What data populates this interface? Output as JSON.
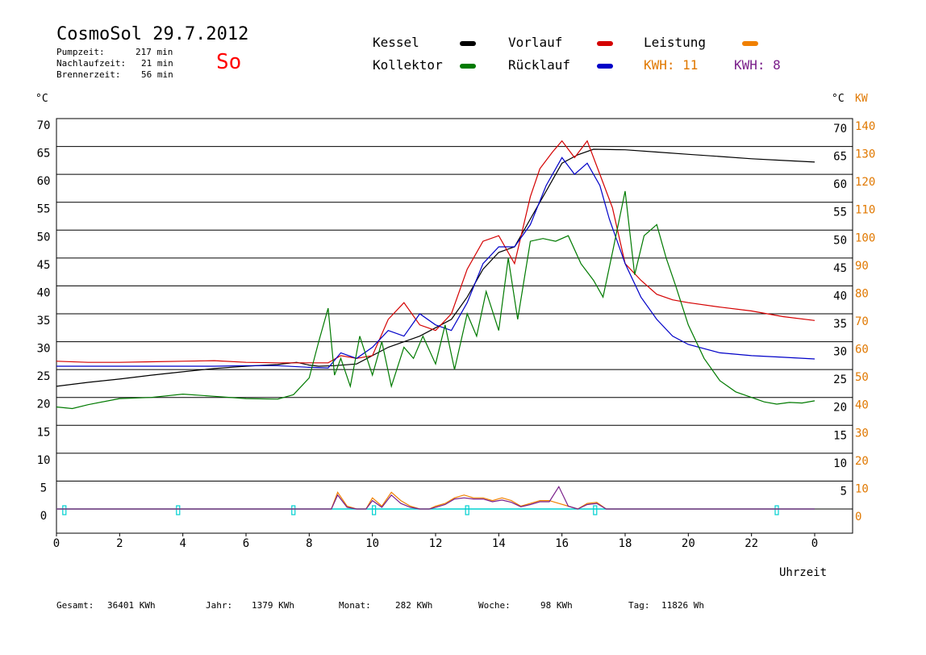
{
  "header": {
    "title": "CosmoSol 29.7.2012",
    "day": "So",
    "pump_label": "Pumpzeit:",
    "pump_value": "217 min",
    "nach_label": "Nachlaufzeit:",
    "nach_value": "21 min",
    "brenner_label": "Brennerzeit:",
    "brenner_value": "56 min"
  },
  "legend": {
    "kessel": "Kessel",
    "vorlauf": "Vorlauf",
    "leistung": "Leistung",
    "kollektor": "Kollektor",
    "ruecklauf": "Rücklauf",
    "kwh_orange": "KWH: 11",
    "kwh_purple": "KWH: 8"
  },
  "axes": {
    "left_unit": "°C",
    "right_unit": "°C",
    "right_unit2": "KW",
    "xlabel": "Uhrzeit"
  },
  "footer": {
    "gesamt_label": "Gesamt:",
    "gesamt_value": "36401 KWh",
    "jahr_label": "Jahr:",
    "jahr_value": "1379 KWh",
    "monat_label": "Monat:",
    "monat_value": "282 KWh",
    "woche_label": "Woche:",
    "woche_value": "98 KWh",
    "tag_label": "Tag:",
    "tag_value": "11826 Wh"
  },
  "colors": {
    "kessel": "#000000",
    "vorlauf": "#d40000",
    "ruecklauf": "#0000c8",
    "kollektor": "#007a00",
    "leistung": "#f08000",
    "kwh_purple": "#7a1f8a",
    "pump": "#00d0d0"
  },
  "chart_data": {
    "type": "line",
    "xlabel": "Uhrzeit",
    "ylabel": "°C",
    "ylabel_right": "KW",
    "xlim": [
      0,
      24
    ],
    "ylim": [
      0,
      70
    ],
    "x_tick_labels": [
      "0",
      "2",
      "4",
      "6",
      "8",
      "10",
      "12",
      "14",
      "16",
      "18",
      "20",
      "22",
      "0"
    ],
    "y_ticks_left": [
      "0",
      "5",
      "10",
      "15",
      "20",
      "25",
      "30",
      "35",
      "40",
      "45",
      "50",
      "55",
      "60",
      "65",
      "70"
    ],
    "y_ticks_right_c": [
      "5",
      "10",
      "15",
      "20",
      "25",
      "30",
      "35",
      "40",
      "45",
      "50",
      "55",
      "60",
      "65",
      "70"
    ],
    "y_ticks_right_kw": [
      "0",
      "10",
      "20",
      "30",
      "40",
      "50",
      "60",
      "70",
      "80",
      "90",
      "100",
      "110",
      "120",
      "130",
      "140"
    ],
    "grid": true,
    "series": [
      {
        "name": "Kessel",
        "x": [
          0,
          1,
          2,
          3,
          4,
          5,
          6,
          7,
          7.6,
          8,
          8.3,
          8.8,
          9.5,
          10.5,
          11.5,
          12,
          12.5,
          13,
          13.5,
          14,
          14.5,
          15,
          15.5,
          16,
          16.5,
          17,
          18,
          19,
          20,
          21,
          22,
          23,
          24
        ],
        "y": [
          22,
          22.7,
          23.3,
          24,
          24.6,
          25.2,
          25.6,
          25.9,
          26.3,
          25.8,
          25.6,
          25.7,
          26,
          29,
          31,
          32.5,
          34,
          38,
          43,
          46,
          47,
          52,
          57,
          62,
          63.5,
          64.5,
          64.4,
          64,
          63.6,
          63.2,
          62.8,
          62.5,
          62.2
        ]
      },
      {
        "name": "Vorlauf",
        "x": [
          0,
          1,
          2,
          3,
          4,
          5,
          6,
          7,
          8,
          8.6,
          9,
          9.5,
          10,
          10.5,
          11,
          11.5,
          12,
          12.5,
          13,
          13.5,
          14,
          14.5,
          15,
          15.3,
          15.7,
          16,
          16.4,
          16.8,
          17.2,
          17.6,
          18,
          18.5,
          19,
          19.5,
          20,
          21,
          22,
          23,
          24
        ],
        "y": [
          26.5,
          26.3,
          26.3,
          26.4,
          26.5,
          26.6,
          26.3,
          26.2,
          26.2,
          26.2,
          27.5,
          27,
          27.5,
          34,
          37,
          33,
          32,
          35,
          43,
          48,
          49,
          44,
          56,
          61,
          64,
          66,
          63,
          66,
          60,
          54,
          44,
          41,
          38.5,
          37.5,
          37,
          36.2,
          35.5,
          34.5,
          33.8
        ]
      },
      {
        "name": "Rücklauf",
        "x": [
          0,
          1,
          2,
          3,
          4,
          5,
          6,
          7,
          8,
          8.6,
          9,
          9.5,
          10,
          10.5,
          11,
          11.5,
          12,
          12.5,
          13,
          13.5,
          14,
          14.5,
          15,
          15.5,
          16,
          16.4,
          16.8,
          17.2,
          17.5,
          18,
          18.5,
          19,
          19.5,
          20,
          21,
          22,
          23,
          24
        ],
        "y": [
          25.6,
          25.6,
          25.6,
          25.6,
          25.6,
          25.6,
          25.7,
          25.7,
          25.4,
          25.3,
          28,
          27,
          29,
          32,
          31,
          35,
          33,
          32,
          37,
          44,
          47,
          47,
          51,
          58,
          63,
          60,
          62,
          58,
          52,
          44,
          38,
          34,
          31,
          29.5,
          28,
          27.5,
          27.2,
          26.9
        ]
      },
      {
        "name": "Kollektor",
        "x": [
          0,
          0.5,
          1,
          2,
          3,
          4,
          5,
          6,
          7,
          7.5,
          8,
          8.3,
          8.6,
          8.8,
          9,
          9.3,
          9.6,
          10,
          10.3,
          10.6,
          11,
          11.3,
          11.6,
          12,
          12.3,
          12.6,
          13,
          13.3,
          13.6,
          14,
          14.3,
          14.6,
          15,
          15.4,
          15.8,
          16.2,
          16.6,
          17,
          17.3,
          17.6,
          18,
          18.3,
          18.6,
          19,
          19.3,
          19.6,
          20,
          20.5,
          21,
          21.5,
          22,
          22.4,
          22.8,
          23.2,
          23.6,
          24
        ],
        "y": [
          18.3,
          18,
          18.7,
          19.8,
          20,
          20.6,
          20.2,
          19.8,
          19.7,
          20.5,
          23.5,
          30,
          36,
          24,
          27,
          22,
          31,
          24,
          30,
          22,
          29,
          27,
          31,
          26,
          33,
          25,
          35,
          31,
          39,
          32,
          45,
          34,
          48,
          48.5,
          48,
          49,
          44,
          41,
          38,
          46,
          57,
          42,
          49,
          51,
          45,
          40,
          33,
          27,
          23,
          21,
          20,
          19.2,
          18.8,
          19.1,
          19,
          19.4
        ]
      }
    ],
    "power_series": [
      {
        "name": "Leistung",
        "x": [
          0,
          8.7,
          8.9,
          9.2,
          9.5,
          9.8,
          10,
          10.3,
          10.6,
          10.9,
          11.2,
          11.5,
          11.8,
          12,
          12.3,
          12.6,
          12.9,
          13.2,
          13.5,
          13.8,
          14.1,
          14.4,
          14.7,
          15,
          15.3,
          15.6,
          15.9,
          16.2,
          16.5,
          16.8,
          17.1,
          17.4,
          24
        ],
        "y": [
          0,
          0,
          3,
          0.5,
          0,
          0,
          2,
          0.5,
          3,
          1.5,
          0.5,
          0,
          0,
          0.5,
          1,
          2,
          2.5,
          2,
          2,
          1.5,
          2,
          1.5,
          0.5,
          1,
          1.5,
          1.5,
          1,
          0.5,
          0,
          1,
          1.2,
          0,
          0
        ]
      },
      {
        "name": "KWH: 8",
        "x": [
          0,
          8.7,
          8.9,
          9.2,
          9.5,
          9.8,
          10,
          10.3,
          10.6,
          10.9,
          11.2,
          11.5,
          11.8,
          12,
          12.3,
          12.6,
          12.9,
          13.2,
          13.5,
          13.8,
          14.1,
          14.4,
          14.7,
          15,
          15.3,
          15.6,
          15.9,
          16.2,
          16.5,
          16.8,
          17.1,
          17.4,
          24
        ],
        "y": [
          0,
          0,
          2.5,
          0.3,
          0,
          0,
          1.5,
          0.3,
          2.5,
          1,
          0.3,
          0,
          0,
          0.3,
          0.8,
          1.8,
          2,
          1.8,
          1.8,
          1.3,
          1.6,
          1.2,
          0.4,
          0.8,
          1.3,
          1.3,
          4,
          0.5,
          0,
          0.8,
          1,
          0,
          0
        ]
      }
    ],
    "pump_markers_hours": [
      0.25,
      3.85,
      7.5,
      10.05,
      13,
      17.05,
      22.8
    ]
  }
}
